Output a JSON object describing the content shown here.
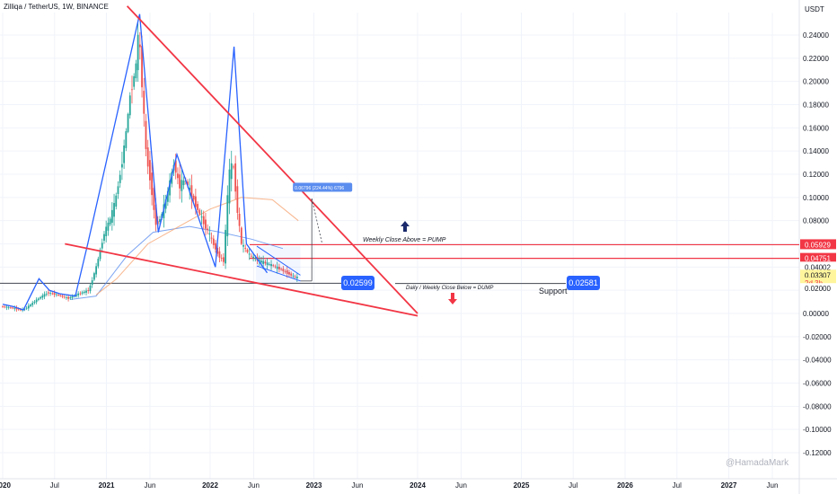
{
  "title": "Zilliqa / TetherUS, 1W, BINANCE",
  "currency": "USDT",
  "watermark": "@HamadaMark",
  "colors": {
    "up": "#26a69a",
    "down": "#ef5350",
    "trend": "#2962ff",
    "red_line": "#f23645",
    "sr_line": "#f23645",
    "support_tag": "#2962ff",
    "yellow": "#fff59d"
  },
  "chart_data": {
    "type": "candlestick",
    "title": "Zilliqa / TetherUS, 1W, BINANCE",
    "ylabel": "USDT",
    "ylim": [
      -0.125,
      0.27
    ],
    "y_ticks": [
      0.24,
      0.22,
      0.2,
      0.18,
      0.16,
      0.14,
      0.12,
      0.1,
      0.08,
      0.06,
      0.04,
      0.02,
      0.0,
      -0.02,
      -0.04,
      -0.06,
      -0.08,
      -0.1,
      -0.12
    ],
    "x_ticks": [
      "2020",
      "Jul",
      "2021",
      "Jun",
      "2022",
      "Jun",
      "2023",
      "Jun",
      "2024",
      "Jun",
      "2025",
      "Jul",
      "2026",
      "Jul",
      "2027",
      "Jun"
    ],
    "x_ticks_bold": [
      "2020",
      "2021",
      "2022",
      "2023",
      "2024",
      "2025",
      "2026",
      "2027"
    ],
    "x_tick_t": [
      2020.0,
      2020.5,
      2021.0,
      2021.42,
      2022.0,
      2022.42,
      2023.0,
      2023.42,
      2024.0,
      2024.42,
      2025.0,
      2025.5,
      2026.0,
      2026.5,
      2027.0,
      2027.42
    ],
    "xlim": [
      2020.0,
      2027.7
    ],
    "candles_note": "approximate weekly price path",
    "price_path": [
      [
        2020.0,
        0.006
      ],
      [
        2020.1,
        0.005
      ],
      [
        2020.2,
        0.003
      ],
      [
        2020.25,
        0.005
      ],
      [
        2020.35,
        0.012
      ],
      [
        2020.45,
        0.018
      ],
      [
        2020.55,
        0.016
      ],
      [
        2020.65,
        0.013
      ],
      [
        2020.75,
        0.017
      ],
      [
        2020.85,
        0.02
      ],
      [
        2020.92,
        0.04
      ],
      [
        2021.0,
        0.07
      ],
      [
        2021.05,
        0.08
      ],
      [
        2021.1,
        0.095
      ],
      [
        2021.15,
        0.12
      ],
      [
        2021.2,
        0.15
      ],
      [
        2021.25,
        0.19
      ],
      [
        2021.3,
        0.21
      ],
      [
        2021.33,
        0.245
      ],
      [
        2021.36,
        0.2
      ],
      [
        2021.4,
        0.14
      ],
      [
        2021.45,
        0.11
      ],
      [
        2021.5,
        0.075
      ],
      [
        2021.55,
        0.085
      ],
      [
        2021.6,
        0.1
      ],
      [
        2021.67,
        0.13
      ],
      [
        2021.72,
        0.11
      ],
      [
        2021.78,
        0.115
      ],
      [
        2021.85,
        0.1
      ],
      [
        2021.92,
        0.085
      ],
      [
        2022.0,
        0.07
      ],
      [
        2022.05,
        0.06
      ],
      [
        2022.1,
        0.05
      ],
      [
        2022.15,
        0.045
      ],
      [
        2022.2,
        0.12
      ],
      [
        2022.24,
        0.13
      ],
      [
        2022.28,
        0.09
      ],
      [
        2022.32,
        0.06
      ],
      [
        2022.4,
        0.05
      ],
      [
        2022.5,
        0.045
      ],
      [
        2022.6,
        0.042
      ],
      [
        2022.7,
        0.038
      ],
      [
        2022.8,
        0.033
      ],
      [
        2022.85,
        0.031
      ]
    ],
    "blue_pattern": [
      [
        2020.0,
        0.008
      ],
      [
        2020.1,
        0.006
      ],
      [
        2020.2,
        0.003
      ],
      [
        2020.35,
        0.03
      ],
      [
        2020.45,
        0.02
      ],
      [
        2020.55,
        0.017
      ],
      [
        2020.7,
        0.015
      ],
      [
        2020.82,
        0.06
      ],
      [
        2021.32,
        0.258
      ],
      [
        2021.5,
        0.07
      ],
      [
        2021.68,
        0.137
      ],
      [
        2022.05,
        0.04
      ],
      [
        2022.23,
        0.23
      ],
      [
        2022.35,
        0.06
      ],
      [
        2022.55,
        0.035
      ]
    ],
    "red_trendlines": [
      {
        "from": [
          2021.2,
          0.265
        ],
        "to": [
          2024.0,
          0.0
        ]
      },
      {
        "from": [
          2020.6,
          0.06
        ],
        "to": [
          2024.0,
          -0.002
        ]
      }
    ],
    "moving_averages": [
      {
        "color": "#5b8def",
        "points": [
          [
            2020.65,
            0.012
          ],
          [
            2020.9,
            0.015
          ],
          [
            2021.2,
            0.05
          ],
          [
            2021.45,
            0.07
          ],
          [
            2021.8,
            0.075
          ],
          [
            2022.1,
            0.07
          ],
          [
            2022.4,
            0.064
          ],
          [
            2022.7,
            0.056
          ]
        ]
      },
      {
        "color": "#f6a36f",
        "points": [
          [
            2020.9,
            0.016
          ],
          [
            2021.1,
            0.03
          ],
          [
            2021.4,
            0.06
          ],
          [
            2021.7,
            0.075
          ],
          [
            2022.0,
            0.09
          ],
          [
            2022.3,
            0.1
          ],
          [
            2022.6,
            0.098
          ],
          [
            2022.85,
            0.08
          ]
        ]
      }
    ],
    "horizontal_levels": [
      {
        "value": 0.05929,
        "label": "0.05929",
        "color": "#f23645"
      },
      {
        "value": 0.04751,
        "label": "0.04751",
        "color": "#f23645"
      },
      {
        "value": 0.02599,
        "label": "0.02599",
        "color": "#2962ff"
      },
      {
        "value": 0.02581,
        "label": "0.02581",
        "color": "#2962ff"
      }
    ],
    "price_tags": [
      {
        "label": "0.05929",
        "value": 0.05929,
        "bg": "#f23645",
        "fg": "#ffffff"
      },
      {
        "label": "0.04751",
        "value": 0.04751,
        "bg": "#f23645",
        "fg": "#ffffff"
      },
      {
        "label": "0.04002",
        "value": 0.04002,
        "bg": "#ffffff",
        "fg": "#131722"
      },
      {
        "label": "0.03307",
        "value": 0.03307,
        "bg": "#fff59d",
        "fg": "#131722"
      },
      {
        "label": "2d 3h",
        "value": 0.0263,
        "bg": "#fff59d",
        "fg": "#f23645"
      },
      {
        "label": "0.02000",
        "value": 0.0215,
        "bg": "#ffffff",
        "fg": "#131722"
      }
    ],
    "annotations": [
      {
        "text": "Weekly Close Above = PUMP",
        "t": 2023.35,
        "value": 0.063
      },
      {
        "text": "Daily / Weekly Close Below = DUMP",
        "t": 2023.85,
        "value": 0.022
      },
      {
        "text": "Support",
        "t": 2025.4,
        "value": 0.018
      },
      {
        "text": "0.06796 (224.44%) 6796",
        "t": 2022.85,
        "value": 0.108
      }
    ],
    "boxes": [
      {
        "label": "0.02599",
        "t": 2022.93,
        "value": 0.0263
      },
      {
        "label": "0.02581",
        "t": 2025.42,
        "value": 0.0263
      }
    ]
  }
}
